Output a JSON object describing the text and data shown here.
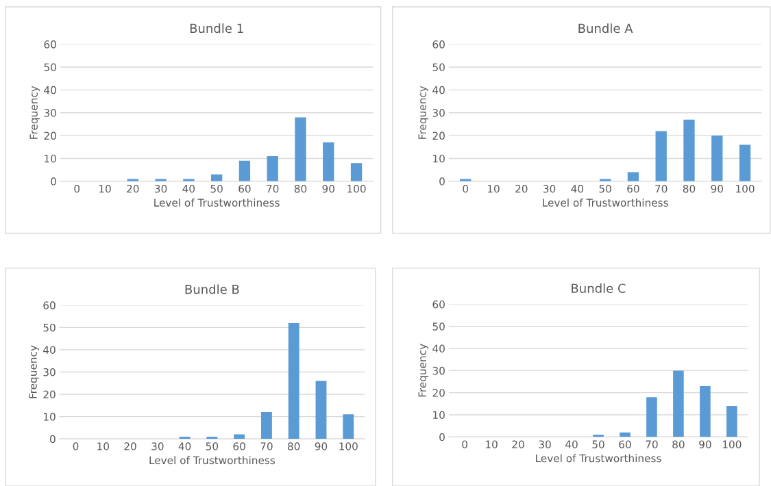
{
  "chart_data": [
    {
      "type": "bar",
      "title": "Bundle 1",
      "xlabel": "Level of Trustworthiness",
      "ylabel": "Frequency",
      "categories": [
        "0",
        "10",
        "20",
        "30",
        "40",
        "50",
        "60",
        "70",
        "80",
        "90",
        "100"
      ],
      "values": [
        0,
        0,
        1,
        1,
        1,
        3,
        9,
        11,
        28,
        17,
        8
      ],
      "color": "#5b9bd5",
      "ylim": [
        0,
        60
      ],
      "yticks": [
        0,
        10,
        20,
        30,
        40,
        50,
        60
      ],
      "grid": "y"
    },
    {
      "type": "bar",
      "title": "Bundle A",
      "xlabel": "Level of Trustworthiness",
      "ylabel": "Frequency",
      "categories": [
        "0",
        "10",
        "20",
        "30",
        "40",
        "50",
        "60",
        "70",
        "80",
        "90",
        "100"
      ],
      "values": [
        1,
        0,
        0,
        0,
        0,
        1,
        4,
        22,
        27,
        20,
        16
      ],
      "color": "#5b9bd5",
      "ylim": [
        0,
        60
      ],
      "yticks": [
        0,
        10,
        20,
        30,
        40,
        50,
        60
      ],
      "grid": "y"
    },
    {
      "type": "bar",
      "title": "Bundle B",
      "xlabel": "Level of Trustworthiness",
      "ylabel": "Frequency",
      "categories": [
        "0",
        "10",
        "20",
        "30",
        "40",
        "50",
        "60",
        "70",
        "80",
        "90",
        "100"
      ],
      "values": [
        0,
        0,
        0,
        0,
        1,
        1,
        2,
        12,
        52,
        26,
        11
      ],
      "color": "#5b9bd5",
      "ylim": [
        0,
        60
      ],
      "yticks": [
        0,
        10,
        20,
        30,
        40,
        50,
        60
      ],
      "grid": "y"
    },
    {
      "type": "bar",
      "title": "Bundle C",
      "xlabel": "Level of Trustworthiness",
      "ylabel": "Frequency",
      "categories": [
        "0",
        "10",
        "20",
        "30",
        "40",
        "50",
        "60",
        "70",
        "80",
        "90",
        "100"
      ],
      "values": [
        0,
        0,
        0,
        0,
        0,
        1,
        2,
        18,
        30,
        23,
        14
      ],
      "color": "#5b9bd5",
      "ylim": [
        0,
        60
      ],
      "yticks": [
        0,
        10,
        20,
        30,
        40,
        50,
        60
      ],
      "grid": "y"
    }
  ]
}
